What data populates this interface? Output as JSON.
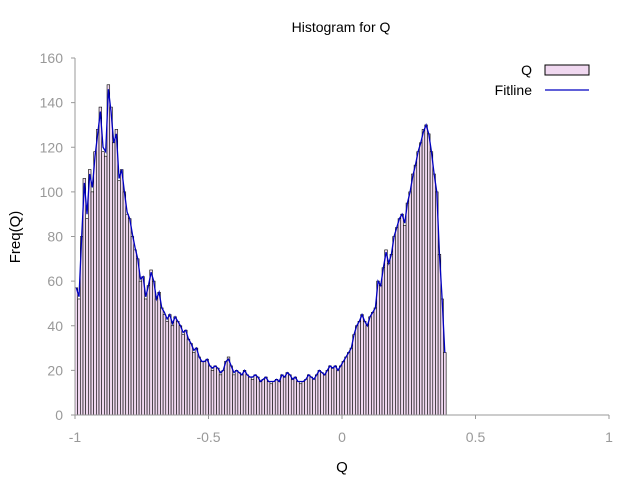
{
  "chart_data": {
    "type": "bar",
    "title": "Histogram for Q",
    "xlabel": "Q",
    "ylabel": "Freq(Q)",
    "xlim": [
      -1,
      1
    ],
    "ylim": [
      0,
      160
    ],
    "xticks": [
      "-1",
      "-0.5",
      "0",
      "0.5",
      "1"
    ],
    "yticks": [
      "0",
      "20",
      "40",
      "60",
      "80",
      "100",
      "120",
      "140",
      "160"
    ],
    "legend_position": "top-right",
    "grid": false,
    "bin_width": 0.01,
    "colors": {
      "bar_fill": "#f0d8f0",
      "bar_stroke": "#000000",
      "fitline": "#0000c0",
      "axis": "#999999"
    },
    "series": [
      {
        "name": "Q",
        "kind": "bars",
        "x_start": -0.995,
        "step": 0.01,
        "values": [
          57,
          52,
          80,
          106,
          88,
          110,
          100,
          118,
          128,
          138,
          118,
          116,
          148,
          138,
          122,
          128,
          105,
          110,
          100,
          90,
          88,
          80,
          74,
          70,
          60,
          62,
          52,
          58,
          65,
          60,
          52,
          55,
          48,
          45,
          42,
          45,
          40,
          44,
          42,
          40,
          36,
          38,
          34,
          32,
          28,
          30,
          26,
          24,
          24,
          25,
          22,
          20,
          22,
          21,
          18,
          20,
          24,
          26,
          22,
          18,
          20,
          19,
          18,
          20,
          18,
          17,
          16,
          18,
          17,
          15,
          16,
          17,
          15,
          14,
          15,
          16,
          15,
          18,
          17,
          19,
          18,
          16,
          17,
          15,
          14,
          15,
          16,
          18,
          17,
          16,
          18,
          20,
          19,
          18,
          20,
          22,
          21,
          22,
          20,
          22,
          24,
          26,
          28,
          30,
          36,
          40,
          42,
          45,
          42,
          40,
          44,
          46,
          48,
          60,
          58,
          66,
          74,
          68,
          72,
          80,
          84,
          88,
          90,
          85,
          95,
          100,
          108,
          112,
          118,
          122,
          128,
          130,
          126,
          118,
          108,
          100,
          72,
          52,
          28
        ]
      },
      {
        "name": "Fitline",
        "kind": "line",
        "x_start": -0.995,
        "step": 0.01,
        "values": [
          57,
          53,
          80,
          104,
          90,
          108,
          102,
          116,
          126,
          136,
          120,
          118,
          146,
          136,
          122,
          126,
          106,
          110,
          100,
          91,
          88,
          81,
          75,
          70,
          61,
          62,
          53,
          58,
          64,
          60,
          52,
          55,
          48,
          46,
          43,
          45,
          41,
          44,
          42,
          40,
          37,
          38,
          34,
          32,
          29,
          30,
          26,
          24,
          24,
          25,
          22,
          21,
          22,
          21,
          19,
          20,
          24,
          25,
          22,
          19,
          20,
          19,
          18,
          20,
          18,
          17,
          17,
          18,
          17,
          15,
          16,
          17,
          15,
          15,
          15,
          16,
          15,
          18,
          17,
          19,
          18,
          16,
          17,
          15,
          15,
          15,
          16,
          18,
          17,
          16,
          18,
          20,
          19,
          18,
          20,
          22,
          21,
          22,
          20,
          22,
          24,
          26,
          28,
          30,
          36,
          40,
          42,
          45,
          42,
          40,
          44,
          46,
          48,
          60,
          58,
          66,
          73,
          68,
          72,
          80,
          84,
          88,
          90,
          86,
          95,
          100,
          107,
          112,
          118,
          122,
          127,
          130,
          126,
          118,
          108,
          100,
          72,
          52,
          28
        ]
      }
    ]
  }
}
